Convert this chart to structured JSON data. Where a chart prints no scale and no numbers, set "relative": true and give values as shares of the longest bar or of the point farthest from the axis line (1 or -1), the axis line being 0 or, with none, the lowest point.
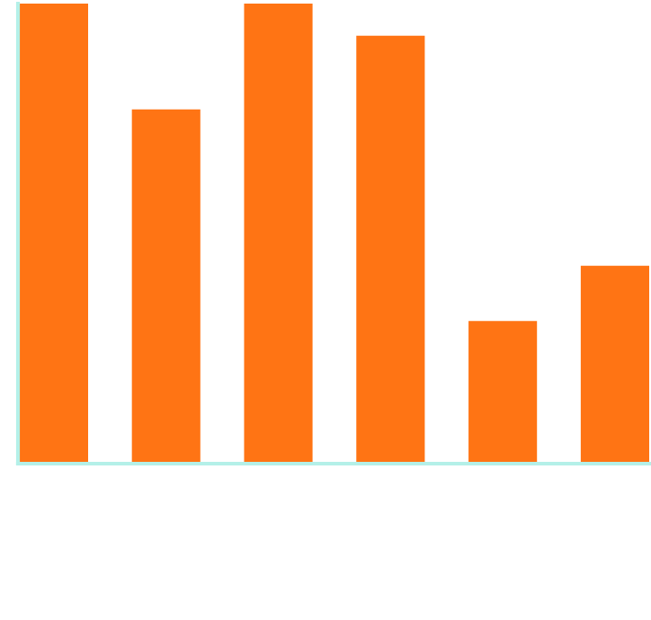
{
  "chart_data": {
    "type": "bar",
    "relative": true,
    "categories": [
      null,
      null,
      null,
      null,
      null,
      null
    ],
    "values": [
      1,
      0.77,
      1,
      0.93,
      0.31,
      0.43
    ],
    "color": "#ff7414",
    "grid": false,
    "legend": false
  }
}
